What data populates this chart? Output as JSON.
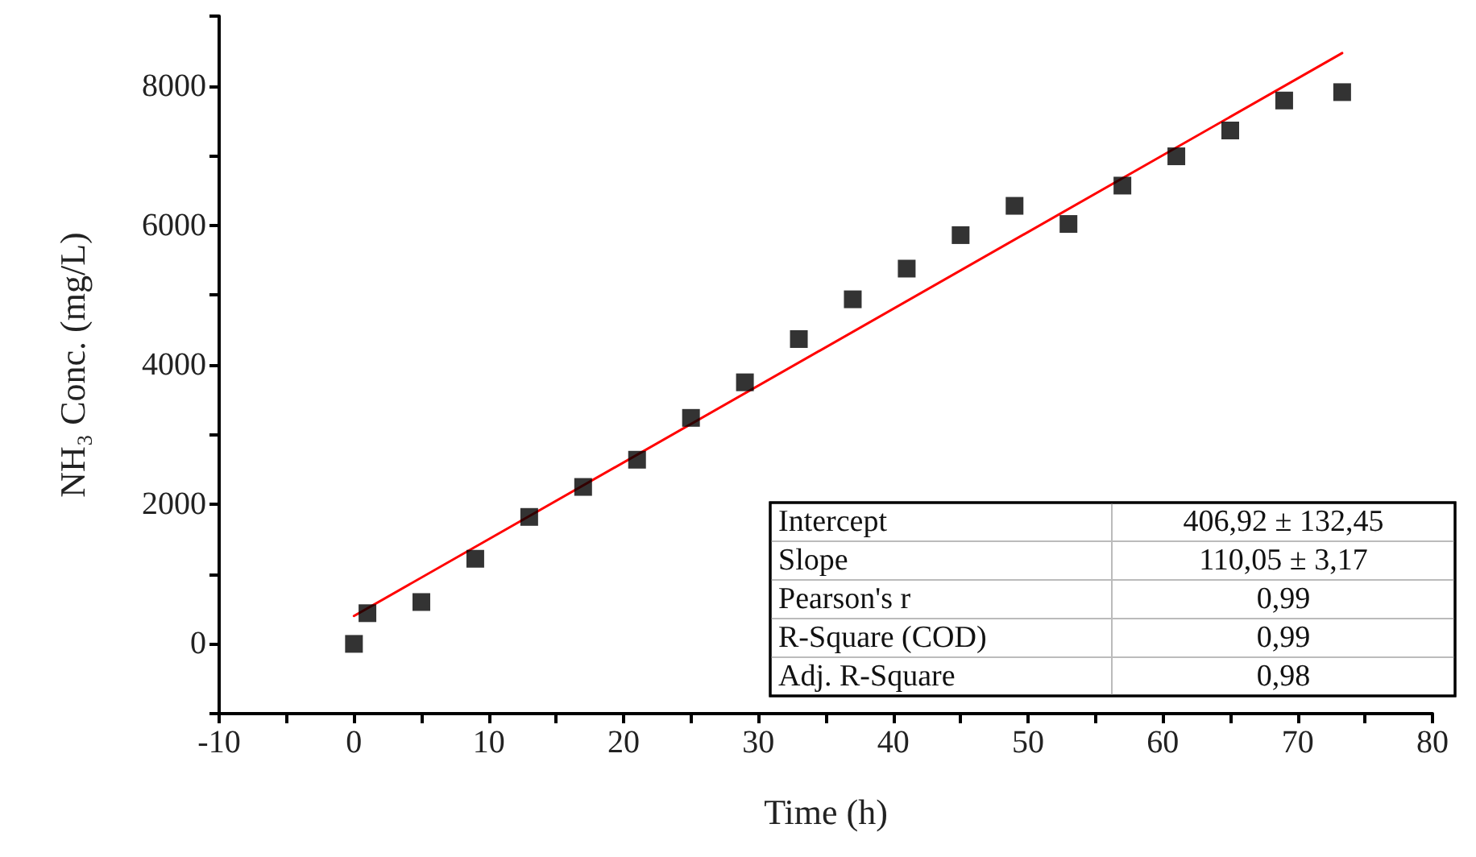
{
  "chart_data": {
    "type": "scatter",
    "xlabel": "Time (h)",
    "ylabel": "NH₃ Conc. (mg/L)",
    "xlim": [
      -10,
      80
    ],
    "xticks": [
      -10,
      {
        "value": -5,
        "label": null
      },
      0,
      {
        "value": 5,
        "label": null
      },
      10,
      {
        "value": 15,
        "label": null
      },
      20,
      {
        "value": 25,
        "label": null
      },
      30,
      {
        "value": 35,
        "label": null
      },
      40,
      {
        "value": 45,
        "label": null
      },
      50,
      {
        "value": 55,
        "label": null
      },
      60,
      {
        "value": 65,
        "label": null
      },
      70,
      {
        "value": 75,
        "label": null
      },
      80
    ],
    "ylim": [
      -1000,
      9000
    ],
    "yticks": [
      {
        "value": -1000,
        "label": null
      },
      0,
      {
        "value": 1000,
        "label": null
      },
      2000,
      {
        "value": 3000,
        "label": null
      },
      4000,
      {
        "value": 5000,
        "label": null
      },
      6000,
      {
        "value": 7000,
        "label": null
      },
      8000,
      {
        "value": 9000,
        "label": null
      }
    ],
    "grid": false,
    "marker": "square",
    "series": [
      {
        "color": "#000000",
        "x": [
          0,
          1,
          5,
          9,
          13,
          17,
          21,
          25,
          29,
          33,
          37,
          41,
          45,
          49,
          53,
          57,
          61,
          65,
          69,
          73.3
        ],
        "values": [
          0,
          440,
          600,
          1220,
          1820,
          2250,
          2640,
          3240,
          3750,
          4370,
          4940,
          5380,
          5860,
          6280,
          6020,
          6570,
          6990,
          7360,
          7790,
          7910
        ]
      },
      {
        "type": "line",
        "color": "#ff0000",
        "marker": "none",
        "line_style": "solid",
        "x": [
          0,
          73.3
        ],
        "values": [
          400,
          8470
        ]
      }
    ],
    "annotations": [
      "Intercept",
      "406,92 ± 132,45",
      "Slope",
      "110,05 ± 3,17",
      "Pearson's r",
      "0,99",
      "R-Square (COD)",
      "0,99",
      "Adj. R-Square",
      "0,98"
    ]
  }
}
